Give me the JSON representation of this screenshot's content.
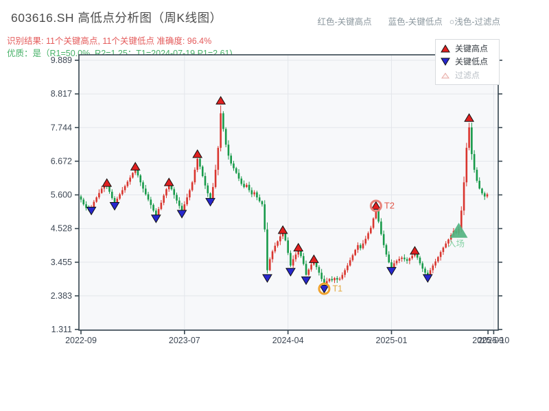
{
  "header": {
    "title": "603616.SH 高低点分析图（周K线图）",
    "subtitle_result": "识别结果: 11个关键高点, 11个关键低点  准确度: 96.4%",
    "subtitle_quality": "优质：是（R1=50.0%, R2=1.25；T1=2024-07-19 P1=2.61)",
    "top_legend": {
      "high_label": "红色-关键高点",
      "low_label": "蓝色-关键低点",
      "filter_label": "○浅色-过滤点"
    }
  },
  "legend_box": {
    "items": [
      {
        "label": "关键高点",
        "marker": "triangle-up-red"
      },
      {
        "label": "关键低点",
        "marker": "triangle-down-blue"
      },
      {
        "label": "过滤点",
        "marker": "triangle-up-outline"
      }
    ]
  },
  "colors": {
    "title": "#4c4c4c",
    "subtitle_red": "#e45b5b",
    "subtitle_green": "#47b168",
    "top_legend_text": "#8b979e",
    "plot_bg": "#f7f8fa",
    "grid": "#e3e6eb",
    "spine": "#36454f",
    "tick_label": "#3d4754",
    "up_candle": "#d9352e",
    "down_candle": "#189a4a",
    "key_high_marker": "#e02020",
    "key_low_marker": "#2727cd",
    "marker_edge": "#111111",
    "filtered_marker_edge": "#e6a9a4",
    "filtered_marker_fill": "#fdf3f2",
    "t1_ring": "#f0a32f",
    "t1_text": "#e3a93f",
    "t2_ring": "#e88178",
    "t2_text": "#e2574a",
    "entry_fill": "#53b381",
    "entry_text": "#86d2a5"
  },
  "chart_data": {
    "type": "candlestick",
    "symbol": "603616.SH",
    "period": "weekly",
    "title": "603616.SH 高低点分析图（周K线图）",
    "y_ticks": [
      "9.889",
      "8.817",
      "7.744",
      "6.672",
      "5.600",
      "4.528",
      "3.455",
      "2.383",
      "1.311"
    ],
    "y_range": [
      1.311,
      9.889
    ],
    "x_ticks": [
      {
        "label": "2022-09",
        "week": 0,
        "gridline": false
      },
      {
        "label": "2023-07",
        "week": 40,
        "gridline": true
      },
      {
        "label": "2024-04",
        "week": 80,
        "gridline": true
      },
      {
        "label": "2025-01",
        "week": 120,
        "gridline": true
      },
      {
        "label": "2025-09",
        "week": 157.3,
        "gridline": false
      },
      {
        "label": "2025-10",
        "week": 159.5,
        "gridline": true
      }
    ],
    "closes": [
      5.45,
      5.3,
      5.18,
      5.12,
      5.2,
      5.38,
      5.52,
      5.66,
      5.8,
      5.9,
      5.88,
      5.7,
      5.5,
      5.32,
      5.48,
      5.62,
      5.75,
      5.88,
      6.02,
      6.15,
      6.3,
      6.4,
      6.22,
      6.0,
      5.8,
      5.62,
      5.45,
      5.28,
      5.1,
      4.95,
      5.15,
      5.35,
      5.58,
      5.78,
      5.92,
      5.78,
      5.6,
      5.42,
      5.25,
      5.1,
      5.3,
      5.52,
      5.75,
      6.0,
      6.4,
      6.75,
      6.5,
      6.2,
      5.9,
      5.65,
      5.48,
      5.85,
      6.4,
      7.1,
      8.2,
      7.7,
      7.2,
      6.85,
      6.6,
      6.45,
      6.3,
      6.12,
      5.95,
      5.85,
      5.92,
      5.75,
      5.62,
      5.68,
      5.52,
      5.4,
      5.3,
      4.5,
      3.2,
      3.55,
      3.8,
      3.98,
      4.12,
      4.28,
      4.38,
      4.15,
      3.75,
      3.35,
      3.55,
      3.7,
      3.82,
      3.65,
      3.4,
      3.05,
      3.22,
      3.38,
      3.45,
      3.3,
      3.12,
      2.92,
      2.75,
      2.85,
      2.92,
      2.88,
      2.95,
      2.9,
      2.93,
      3.05,
      3.2,
      3.35,
      3.52,
      3.68,
      3.85,
      4.0,
      3.9,
      4.05,
      4.2,
      4.38,
      4.55,
      4.85,
      5.1,
      4.75,
      4.35,
      4.0,
      3.7,
      3.45,
      3.28,
      3.42,
      3.5,
      3.56,
      3.6,
      3.55,
      3.5,
      3.58,
      3.66,
      3.74,
      3.6,
      3.42,
      3.25,
      3.12,
      3.05,
      3.2,
      3.35,
      3.48,
      3.62,
      3.78,
      3.92,
      4.05,
      4.18,
      4.32,
      4.45,
      4.38,
      4.52,
      5.1,
      6.0,
      7.1,
      7.75,
      6.9,
      6.4,
      6.05,
      5.8,
      5.65,
      5.55,
      5.62
    ],
    "key_highs": [
      {
        "week": 10,
        "price": 5.98
      },
      {
        "week": 21,
        "price": 6.5
      },
      {
        "week": 34,
        "price": 6.0
      },
      {
        "week": 45,
        "price": 6.9
      },
      {
        "week": 54,
        "price": 8.6
      },
      {
        "week": 78,
        "price": 4.48
      },
      {
        "week": 84,
        "price": 3.92
      },
      {
        "week": 90,
        "price": 3.55
      },
      {
        "week": 114,
        "price": 5.25
      },
      {
        "week": 129,
        "price": 3.82
      },
      {
        "week": 150,
        "price": 8.05
      }
    ],
    "key_lows": [
      {
        "week": 4,
        "price": 5.1
      },
      {
        "week": 13,
        "price": 5.25
      },
      {
        "week": 29,
        "price": 4.85
      },
      {
        "week": 39,
        "price": 5.0
      },
      {
        "week": 50,
        "price": 5.38
      },
      {
        "week": 72,
        "price": 2.95
      },
      {
        "week": 81,
        "price": 3.15
      },
      {
        "week": 87,
        "price": 2.88
      },
      {
        "week": 94,
        "price": 2.61
      },
      {
        "week": 120,
        "price": 3.18
      },
      {
        "week": 134,
        "price": 2.95
      }
    ],
    "markers": {
      "t1": {
        "label": "T1",
        "week": 94,
        "price": 2.61
      },
      "t2": {
        "label": "T2",
        "week": 114,
        "price": 5.25
      },
      "entry": {
        "label": "入场",
        "week": 146,
        "price": 4.45
      }
    }
  }
}
